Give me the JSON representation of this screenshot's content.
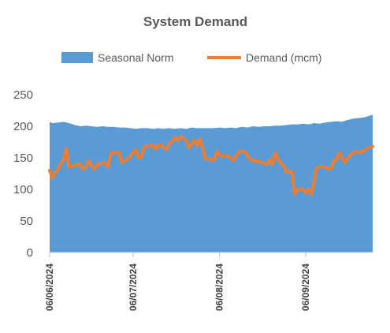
{
  "chart_data": {
    "type": "area",
    "title": "System Demand",
    "xlabel": "",
    "ylabel": "",
    "ylim": [
      0,
      250
    ],
    "yticks": [
      0,
      50,
      100,
      150,
      200,
      250
    ],
    "xlim": [
      "2024-06-06",
      "2024-09-30"
    ],
    "xtick_labels": [
      "06/06/2024",
      "06/07/2024",
      "06/08/2024",
      "06/09/2024"
    ],
    "xtick_dates": [
      "2024-06-06",
      "2024-07-06",
      "2024-08-06",
      "2024-09-06"
    ],
    "grid": false,
    "legend_position": "top",
    "series": [
      {
        "name": "Seasonal Norm",
        "kind": "area",
        "color": "#5B9BD5",
        "points": [
          [
            "2024-06-06",
            207
          ],
          [
            "2024-06-07",
            205
          ],
          [
            "2024-06-09",
            206
          ],
          [
            "2024-06-11",
            207
          ],
          [
            "2024-06-13",
            205
          ],
          [
            "2024-06-15",
            202
          ],
          [
            "2024-06-17",
            200
          ],
          [
            "2024-06-19",
            201
          ],
          [
            "2024-06-21",
            200
          ],
          [
            "2024-06-23",
            199
          ],
          [
            "2024-06-25",
            200
          ],
          [
            "2024-06-27",
            199
          ],
          [
            "2024-06-29",
            199
          ],
          [
            "2024-07-01",
            198
          ],
          [
            "2024-07-03",
            198
          ],
          [
            "2024-07-05",
            197
          ],
          [
            "2024-07-07",
            196
          ],
          [
            "2024-07-09",
            197
          ],
          [
            "2024-07-11",
            197
          ],
          [
            "2024-07-13",
            196
          ],
          [
            "2024-07-15",
            197
          ],
          [
            "2024-07-17",
            196
          ],
          [
            "2024-07-19",
            197
          ],
          [
            "2024-07-21",
            196
          ],
          [
            "2024-07-23",
            197
          ],
          [
            "2024-07-25",
            196
          ],
          [
            "2024-07-27",
            198
          ],
          [
            "2024-07-29",
            197
          ],
          [
            "2024-07-31",
            197
          ],
          [
            "2024-08-02",
            197
          ],
          [
            "2024-08-04",
            197
          ],
          [
            "2024-08-06",
            198
          ],
          [
            "2024-08-08",
            197
          ],
          [
            "2024-08-10",
            198
          ],
          [
            "2024-08-12",
            197
          ],
          [
            "2024-08-14",
            199
          ],
          [
            "2024-08-16",
            198
          ],
          [
            "2024-08-18",
            200
          ],
          [
            "2024-08-20",
            199
          ],
          [
            "2024-08-22",
            200
          ],
          [
            "2024-08-24",
            200
          ],
          [
            "2024-08-26",
            201
          ],
          [
            "2024-08-28",
            201
          ],
          [
            "2024-08-30",
            202
          ],
          [
            "2024-09-01",
            203
          ],
          [
            "2024-09-03",
            203
          ],
          [
            "2024-09-05",
            204
          ],
          [
            "2024-09-07",
            203
          ],
          [
            "2024-09-09",
            205
          ],
          [
            "2024-09-11",
            204
          ],
          [
            "2024-09-13",
            206
          ],
          [
            "2024-09-15",
            207
          ],
          [
            "2024-09-17",
            208
          ],
          [
            "2024-09-19",
            207
          ],
          [
            "2024-09-21",
            210
          ],
          [
            "2024-09-23",
            212
          ],
          [
            "2024-09-25",
            213
          ],
          [
            "2024-09-27",
            214
          ],
          [
            "2024-09-29",
            217
          ],
          [
            "2024-09-30",
            218
          ]
        ]
      },
      {
        "name": "Demand (mcm)",
        "kind": "line",
        "color": "#ED7D31",
        "points": [
          [
            "2024-06-06",
            130
          ],
          [
            "2024-06-07",
            118
          ],
          [
            "2024-06-08",
            127
          ],
          [
            "2024-06-09",
            132
          ],
          [
            "2024-06-10",
            140
          ],
          [
            "2024-06-11",
            147
          ],
          [
            "2024-06-12",
            165
          ],
          [
            "2024-06-13",
            135
          ],
          [
            "2024-06-15",
            138
          ],
          [
            "2024-06-17",
            140
          ],
          [
            "2024-06-18",
            132
          ],
          [
            "2024-06-19",
            135
          ],
          [
            "2024-06-20",
            145
          ],
          [
            "2024-06-21",
            138
          ],
          [
            "2024-06-22",
            132
          ],
          [
            "2024-06-23",
            138
          ],
          [
            "2024-06-25",
            142
          ],
          [
            "2024-06-26",
            142
          ],
          [
            "2024-06-27",
            136
          ],
          [
            "2024-06-28",
            158
          ],
          [
            "2024-07-01",
            158
          ],
          [
            "2024-07-02",
            142
          ],
          [
            "2024-07-04",
            148
          ],
          [
            "2024-07-06",
            158
          ],
          [
            "2024-07-07",
            163
          ],
          [
            "2024-07-08",
            150
          ],
          [
            "2024-07-09",
            152
          ],
          [
            "2024-07-10",
            168
          ],
          [
            "2024-07-13",
            170
          ],
          [
            "2024-07-14",
            164
          ],
          [
            "2024-07-15",
            170
          ],
          [
            "2024-07-16",
            170
          ],
          [
            "2024-07-18",
            163
          ],
          [
            "2024-07-19",
            172
          ],
          [
            "2024-07-21",
            182
          ],
          [
            "2024-07-22",
            178
          ],
          [
            "2024-07-23",
            183
          ],
          [
            "2024-07-25",
            178
          ],
          [
            "2024-07-26",
            166
          ],
          [
            "2024-07-28",
            178
          ],
          [
            "2024-07-29",
            170
          ],
          [
            "2024-07-30",
            180
          ],
          [
            "2024-08-01",
            148
          ],
          [
            "2024-08-03",
            148
          ],
          [
            "2024-08-04",
            146
          ],
          [
            "2024-08-05",
            160
          ],
          [
            "2024-08-07",
            152
          ],
          [
            "2024-08-09",
            153
          ],
          [
            "2024-08-11",
            146
          ],
          [
            "2024-08-13",
            160
          ],
          [
            "2024-08-15",
            160
          ],
          [
            "2024-08-16",
            155
          ],
          [
            "2024-08-17",
            147
          ],
          [
            "2024-08-19",
            145
          ],
          [
            "2024-08-21",
            143
          ],
          [
            "2024-08-23",
            140
          ],
          [
            "2024-08-24",
            147
          ],
          [
            "2024-08-25",
            140
          ],
          [
            "2024-08-26",
            158
          ],
          [
            "2024-08-27",
            148
          ],
          [
            "2024-08-29",
            137
          ],
          [
            "2024-08-30",
            128
          ],
          [
            "2024-09-01",
            128
          ],
          [
            "2024-09-02",
            93
          ],
          [
            "2024-09-03",
            100
          ],
          [
            "2024-09-05",
            100
          ],
          [
            "2024-09-06",
            95
          ],
          [
            "2024-09-07",
            100
          ],
          [
            "2024-09-08",
            92
          ],
          [
            "2024-09-10",
            135
          ],
          [
            "2024-09-12",
            136
          ],
          [
            "2024-09-15",
            132
          ],
          [
            "2024-09-16",
            145
          ],
          [
            "2024-09-17",
            147
          ],
          [
            "2024-09-18",
            158
          ],
          [
            "2024-09-20",
            143
          ],
          [
            "2024-09-22",
            155
          ],
          [
            "2024-09-24",
            160
          ],
          [
            "2024-09-26",
            158
          ],
          [
            "2024-09-28",
            165
          ],
          [
            "2024-09-30",
            168
          ]
        ]
      }
    ]
  }
}
